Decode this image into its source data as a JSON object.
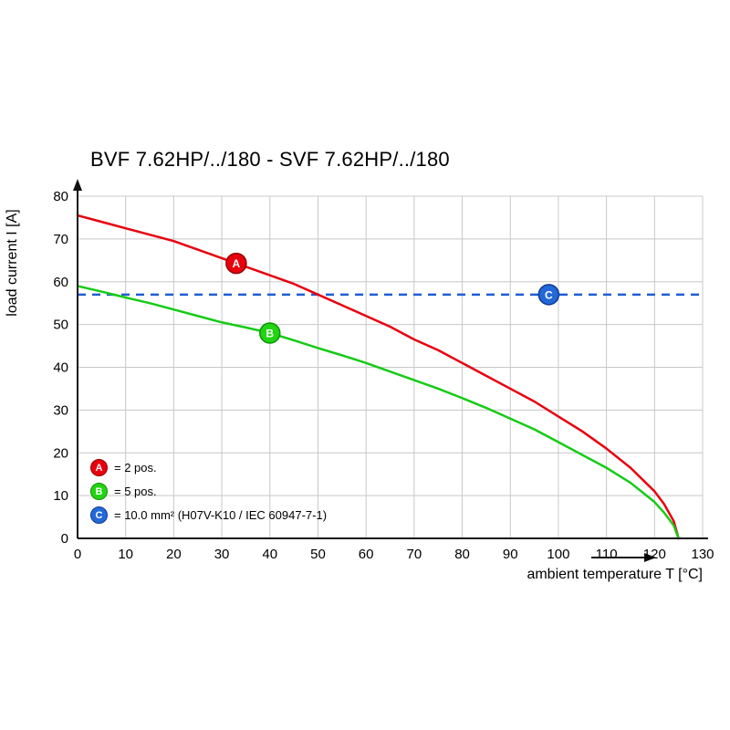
{
  "chart_data": {
    "type": "line",
    "title": "BVF 7.62HP/../180 - SVF 7.62HP/../180",
    "xlabel": "ambient temperature T [°C]",
    "ylabel": "load current I [A]",
    "xlim": [
      0,
      130
    ],
    "ylim": [
      0,
      80
    ],
    "x_ticks": [
      0,
      10,
      20,
      30,
      40,
      50,
      60,
      70,
      80,
      90,
      100,
      110,
      120,
      130
    ],
    "y_ticks": [
      0,
      10,
      20,
      30,
      40,
      50,
      60,
      70,
      80
    ],
    "grid": true,
    "grid_color": "#c8c8c8",
    "axis_color": "#111111",
    "legend_position": "bottom-left-inside",
    "series": [
      {
        "name": "A",
        "label": "= 2 pos.",
        "color": "#e8000e",
        "type": "curve",
        "points": [
          [
            0,
            75.5
          ],
          [
            5,
            74
          ],
          [
            10,
            72.5
          ],
          [
            15,
            71
          ],
          [
            20,
            69.5
          ],
          [
            25,
            67.5
          ],
          [
            30,
            65.5
          ],
          [
            35,
            63.5
          ],
          [
            40,
            61.5
          ],
          [
            45,
            59.5
          ],
          [
            50,
            57
          ],
          [
            55,
            54.5
          ],
          [
            60,
            52
          ],
          [
            65,
            49.5
          ],
          [
            70,
            46.5
          ],
          [
            75,
            44
          ],
          [
            80,
            41
          ],
          [
            85,
            38
          ],
          [
            90,
            35
          ],
          [
            95,
            32
          ],
          [
            100,
            28.5
          ],
          [
            105,
            25
          ],
          [
            110,
            21
          ],
          [
            115,
            16.5
          ],
          [
            120,
            11
          ],
          [
            122,
            8
          ],
          [
            124,
            4
          ],
          [
            125,
            0
          ]
        ]
      },
      {
        "name": "B",
        "label": "= 5 pos.",
        "color": "#16cb16",
        "type": "curve",
        "points": [
          [
            0,
            59
          ],
          [
            5,
            57.7
          ],
          [
            10,
            56.3
          ],
          [
            15,
            55
          ],
          [
            20,
            53.5
          ],
          [
            25,
            52
          ],
          [
            30,
            50.5
          ],
          [
            35,
            49.3
          ],
          [
            40,
            48
          ],
          [
            45,
            46.3
          ],
          [
            50,
            44.5
          ],
          [
            55,
            42.8
          ],
          [
            60,
            41
          ],
          [
            65,
            39
          ],
          [
            70,
            37
          ],
          [
            75,
            35
          ],
          [
            80,
            32.8
          ],
          [
            85,
            30.5
          ],
          [
            90,
            28
          ],
          [
            95,
            25.5
          ],
          [
            100,
            22.5
          ],
          [
            105,
            19.5
          ],
          [
            110,
            16.5
          ],
          [
            115,
            13
          ],
          [
            120,
            8.5
          ],
          [
            122,
            6
          ],
          [
            124,
            3
          ],
          [
            125,
            0
          ]
        ]
      },
      {
        "name": "C",
        "label": "= 10.0 mm² (H07V-K10 / IEC 60947-7-1)",
        "color": "#1f5ed2",
        "type": "hline",
        "value": 57
      }
    ],
    "markers": [
      {
        "letter": "A",
        "x": 33,
        "y": 64.3,
        "fill": "#e8000e",
        "edge": "#960000"
      },
      {
        "letter": "B",
        "x": 40,
        "y": 48,
        "fill": "#22d411",
        "edge": "#0b9305"
      },
      {
        "letter": "C",
        "x": 98,
        "y": 57,
        "fill": "#2268d8",
        "edge": "#123c90"
      }
    ],
    "legend": [
      {
        "letter": "A",
        "label": "= 2 pos.",
        "fill": "#e8000e",
        "edge": "#960000"
      },
      {
        "letter": "B",
        "label": "= 5 pos.",
        "fill": "#22d411",
        "edge": "#0b9305"
      },
      {
        "letter": "C",
        "label": "= 10.0 mm² (H07V-K10 / IEC 60947-7-1)",
        "fill": "#2268d8",
        "edge": "#123c90"
      }
    ]
  }
}
